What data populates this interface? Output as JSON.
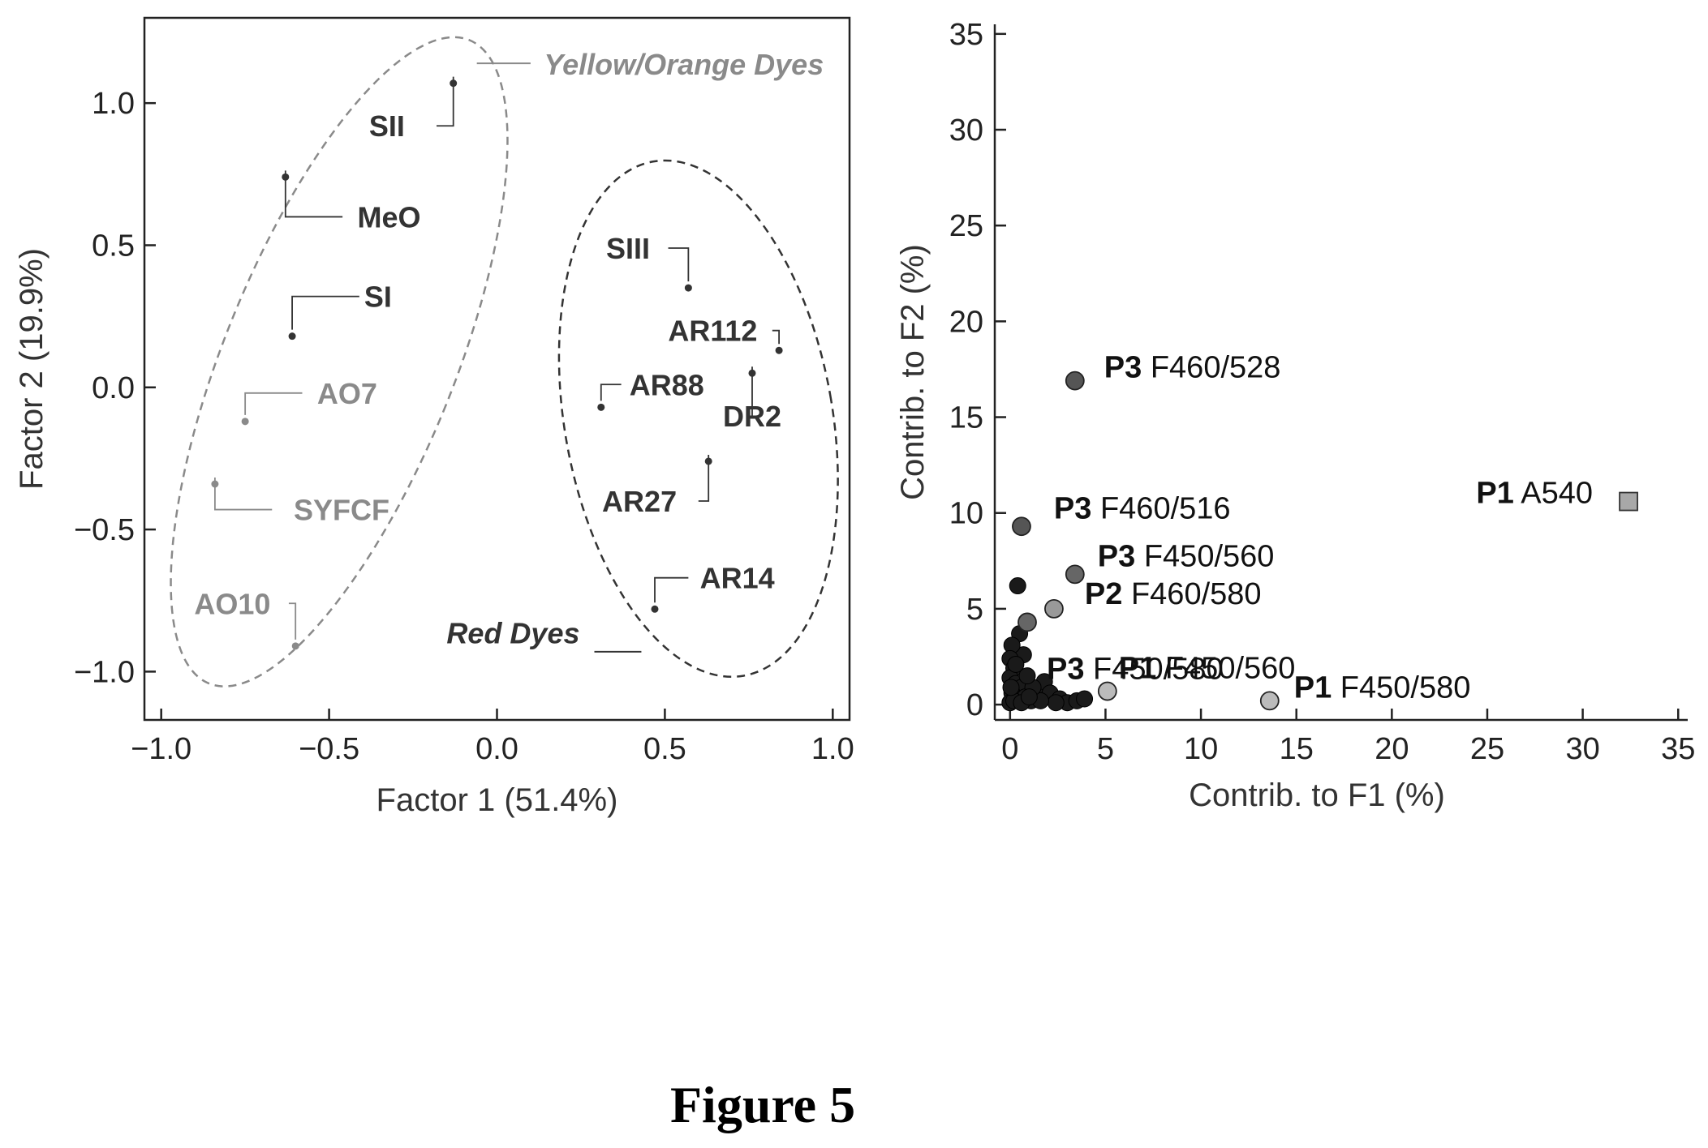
{
  "figure_caption": "Figure 5",
  "chart_data": [
    {
      "type": "scatter",
      "title": "",
      "xlabel": "Factor 1 (51.4%)",
      "ylabel": "Factor 2 (19.9%)",
      "xlim": [
        -1.05,
        1.05
      ],
      "ylim": [
        -1.17,
        1.3
      ],
      "xticks": [
        -1.0,
        -0.5,
        0.0,
        0.5,
        1.0
      ],
      "xtick_labels": [
        "−1.0",
        "−0.5",
        "0.0",
        "0.5",
        "1.0"
      ],
      "yticks": [
        -1.0,
        -0.5,
        0.0,
        0.5,
        1.0
      ],
      "ytick_labels": [
        "−1.0",
        "−0.5",
        "0.0",
        "0.5",
        "1.0"
      ],
      "grid": false,
      "points": [
        {
          "label": "SII",
          "x": -0.13,
          "y": 1.07,
          "color": "#333333"
        },
        {
          "label": "MeO",
          "x": -0.63,
          "y": 0.74,
          "color": "#333333"
        },
        {
          "label": "SI",
          "x": -0.61,
          "y": 0.18,
          "color": "#333333"
        },
        {
          "label": "AO7",
          "x": -0.75,
          "y": -0.12,
          "color": "#8a8a8a"
        },
        {
          "label": "SYFCF",
          "x": -0.84,
          "y": -0.34,
          "color": "#8a8a8a"
        },
        {
          "label": "AO10",
          "x": -0.6,
          "y": -0.91,
          "color": "#8a8a8a"
        },
        {
          "label": "SIII",
          "x": 0.57,
          "y": 0.35,
          "color": "#333333"
        },
        {
          "label": "AR112",
          "x": 0.84,
          "y": 0.13,
          "color": "#333333"
        },
        {
          "label": "AR88",
          "x": 0.31,
          "y": -0.07,
          "color": "#333333"
        },
        {
          "label": "DR2",
          "x": 0.76,
          "y": 0.05,
          "color": "#333333"
        },
        {
          "label": "AR27",
          "x": 0.63,
          "y": -0.26,
          "color": "#333333"
        },
        {
          "label": "AR14",
          "x": 0.47,
          "y": -0.78,
          "color": "#333333"
        }
      ],
      "groups": [
        {
          "label": "Yellow/Orange Dyes",
          "color": "#8a8a8a"
        },
        {
          "label": "Red Dyes",
          "color": "#333333"
        }
      ]
    },
    {
      "type": "scatter",
      "title": "",
      "xlabel": "Contrib. to F1 (%)",
      "ylabel": "Contrib. to F2 (%)",
      "xlim": [
        -0.8,
        35.5
      ],
      "ylim": [
        -0.8,
        35.5
      ],
      "xticks": [
        0,
        5,
        10,
        15,
        20,
        25,
        30,
        35
      ],
      "xtick_labels": [
        "0",
        "5",
        "10",
        "15",
        "20",
        "25",
        "30",
        "35"
      ],
      "yticks": [
        0,
        5,
        10,
        15,
        20,
        25,
        30,
        35
      ],
      "ytick_labels": [
        "0",
        "5",
        "10",
        "15",
        "20",
        "25",
        "30",
        "35"
      ],
      "grid": false,
      "labeled_points": [
        {
          "prefix": "P3",
          "label": "F460/528",
          "x": 3.4,
          "y": 16.9,
          "color": "#555555",
          "marker": "circle"
        },
        {
          "prefix": "P3",
          "label": "F460/516",
          "x": 0.6,
          "y": 9.3,
          "color": "#555555",
          "marker": "circle"
        },
        {
          "prefix": "P1",
          "label": "A540",
          "x": 32.4,
          "y": 10.6,
          "color": "#a8a8a8",
          "marker": "square"
        },
        {
          "prefix": "P3",
          "label": "F450/560",
          "x": 3.4,
          "y": 6.8,
          "color": "#666666",
          "marker": "circle"
        },
        {
          "prefix": "P2",
          "label": "F460/580",
          "x": 2.3,
          "y": 5.0,
          "color": "#999999",
          "marker": "circle"
        },
        {
          "prefix": "P3",
          "label": "F450/580",
          "x": 0.9,
          "y": 4.3,
          "color": "#666666",
          "marker": "circle"
        },
        {
          "prefix": "P1",
          "label": "F450/560",
          "x": 5.1,
          "y": 0.7,
          "color": "#bbbbbb",
          "marker": "circle"
        },
        {
          "prefix": "P1",
          "label": "F450/580",
          "x": 13.6,
          "y": 0.2,
          "color": "#bbbbbb",
          "marker": "circle"
        }
      ],
      "cluster_points": [
        [
          0.4,
          6.2
        ],
        [
          0.5,
          3.7
        ],
        [
          0.7,
          2.6
        ],
        [
          0.1,
          3.1
        ],
        [
          0.0,
          2.4
        ],
        [
          0.2,
          1.9
        ],
        [
          0.0,
          1.4
        ],
        [
          0.3,
          1.1
        ],
        [
          0.6,
          0.9
        ],
        [
          0.1,
          0.6
        ],
        [
          0.4,
          0.3
        ],
        [
          0.0,
          0.1
        ],
        [
          0.8,
          0.4
        ],
        [
          1.1,
          0.2
        ],
        [
          1.4,
          0.5
        ],
        [
          1.8,
          1.2
        ],
        [
          2.1,
          0.6
        ],
        [
          2.6,
          0.3
        ],
        [
          3.0,
          0.1
        ],
        [
          3.5,
          0.2
        ],
        [
          3.9,
          0.3
        ],
        [
          2.4,
          0.1
        ],
        [
          1.6,
          0.2
        ],
        [
          1.2,
          0.9
        ],
        [
          0.9,
          1.5
        ],
        [
          0.3,
          2.1
        ],
        [
          0.2,
          0.2
        ],
        [
          0.6,
          0.1
        ],
        [
          1.0,
          0.4
        ],
        [
          0.05,
          0.9
        ]
      ]
    }
  ]
}
